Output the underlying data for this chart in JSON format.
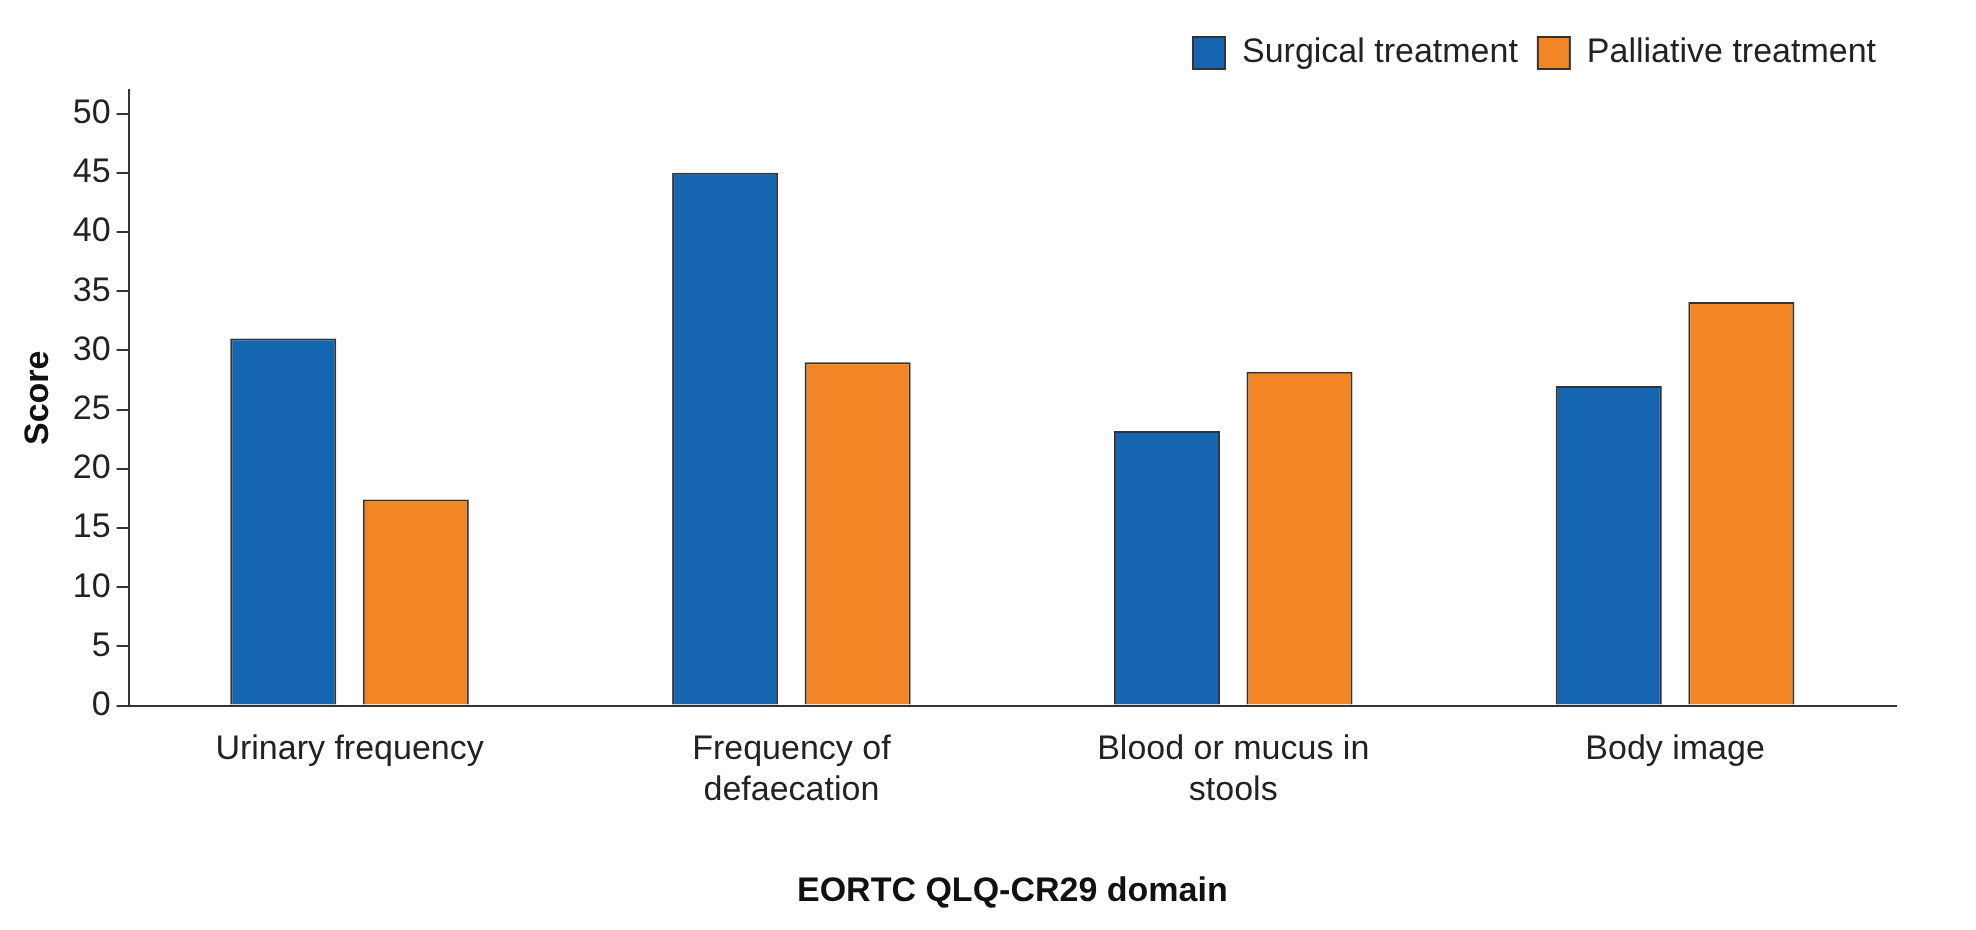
{
  "chart_data": {
    "type": "bar",
    "xlabel": "EORTC QLQ-CR29 domain",
    "ylabel": "Score",
    "categories": [
      "Urinary frequency",
      "Frequency of defaecation",
      "Blood or mucus in stools",
      "Body image"
    ],
    "series": [
      {
        "name": "Surgical treatment",
        "color": "#1565b0",
        "values": [
          31,
          45,
          23.2,
          27
        ]
      },
      {
        "name": "Palliative treatment",
        "color": "#f28524",
        "values": [
          17.4,
          29,
          28.2,
          34.1
        ]
      }
    ],
    "ylim": [
      0,
      52
    ],
    "yticks": [
      0,
      5,
      10,
      15,
      20,
      25,
      30,
      35,
      40,
      45,
      50
    ],
    "grid": false,
    "legend": "top right"
  }
}
